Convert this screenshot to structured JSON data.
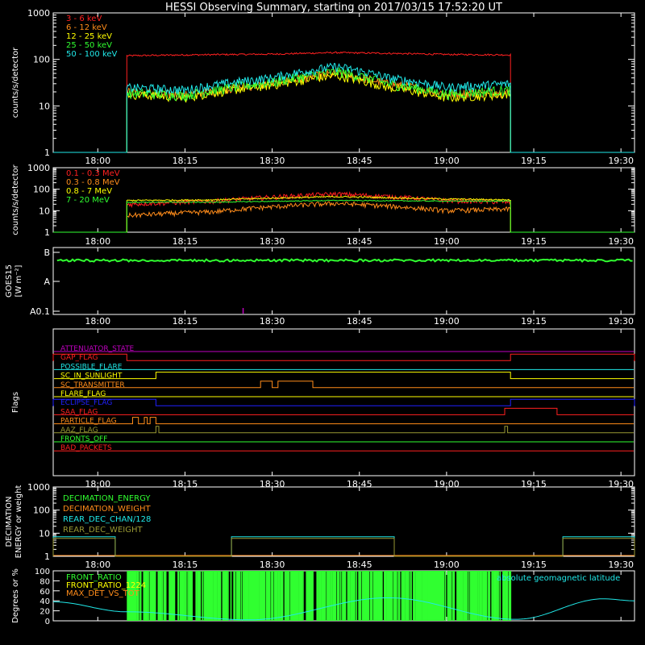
{
  "title": "HESSI Observing Summary, starting on 2017/03/15 17:52:20 UT",
  "time_ticks": [
    "18:00",
    "18:15",
    "18:30",
    "18:45",
    "19:00",
    "19:15",
    "19:30"
  ],
  "time_axis": {
    "start": "17:52:20",
    "end": "19:32:20"
  },
  "chart_data": [
    {
      "type": "line",
      "panel": "lightcurves",
      "ylabel": "counts/s/detector",
      "yscale": "log",
      "ylim": [
        1,
        1000
      ],
      "yticks": [
        "1",
        "10",
        "100",
        "1000"
      ],
      "data_interval": [
        "18:05",
        "19:11"
      ],
      "series": [
        {
          "name": "3 - 6 keV",
          "color": "#ff2020",
          "x": [
            "18:05",
            "18:15",
            "18:30",
            "18:41",
            "18:50",
            "19:00",
            "19:11"
          ],
          "values": [
            120,
            125,
            130,
            140,
            135,
            128,
            125
          ]
        },
        {
          "name": "6 - 12 keV",
          "color": "#ff8c1a",
          "x": [
            "18:05",
            "18:15",
            "18:30",
            "18:41",
            "18:50",
            "19:00",
            "19:11"
          ],
          "values": [
            20,
            17,
            30,
            50,
            30,
            18,
            20
          ]
        },
        {
          "name": "12 - 25 keV",
          "color": "#ffff00",
          "x": [
            "18:05",
            "18:15",
            "18:30",
            "18:41",
            "18:50",
            "19:00",
            "19:11"
          ],
          "values": [
            18,
            15,
            28,
            45,
            25,
            15,
            18
          ]
        },
        {
          "name": "25 - 50 keV",
          "color": "#30ff30",
          "x": [
            "18:05",
            "18:15",
            "18:30",
            "18:41",
            "18:50",
            "19:00",
            "19:11"
          ],
          "values": [
            19,
            17,
            32,
            55,
            30,
            18,
            22
          ]
        },
        {
          "name": "50 - 100 keV",
          "color": "#20e8e8",
          "x": [
            "18:05",
            "18:15",
            "18:30",
            "18:41",
            "18:50",
            "19:00",
            "19:11"
          ],
          "values": [
            25,
            22,
            40,
            70,
            40,
            25,
            30
          ]
        }
      ]
    },
    {
      "type": "line",
      "panel": "high-energy",
      "ylabel": "counts/s/detector",
      "yscale": "log",
      "ylim": [
        1,
        1000
      ],
      "yticks": [
        "1",
        "10",
        "100",
        "1000"
      ],
      "data_interval": [
        "18:05",
        "19:11"
      ],
      "series": [
        {
          "name": "0.1 - 0.3 MeV",
          "color": "#ff2020",
          "x": [
            "18:05",
            "18:20",
            "18:41",
            "19:00",
            "19:11"
          ],
          "values": [
            20,
            28,
            60,
            30,
            25
          ]
        },
        {
          "name": "0.3 - 0.8 MeV",
          "color": "#ff8c1a",
          "x": [
            "18:05",
            "18:20",
            "18:41",
            "19:00",
            "19:11"
          ],
          "values": [
            6,
            9,
            22,
            10,
            12
          ]
        },
        {
          "name": "0.8 - 7 MeV",
          "color": "#ffff00",
          "x": [
            "18:05",
            "18:20",
            "18:41",
            "19:00",
            "19:11"
          ],
          "values": [
            30,
            32,
            45,
            35,
            32
          ]
        },
        {
          "name": "7 - 20 MeV",
          "color": "#30ff30",
          "x": [
            "18:05",
            "18:20",
            "18:41",
            "19:00",
            "19:11"
          ],
          "values": [
            25,
            25,
            30,
            28,
            28
          ]
        }
      ]
    },
    {
      "type": "line",
      "panel": "goes",
      "ylabel": "GOES15",
      "ylabel2": "[W m⁻²]",
      "yticks": [
        "A0.1",
        "A",
        "B"
      ],
      "ylim_class": [
        "A0.1",
        "B"
      ],
      "series": [
        {
          "name": "goes-flux",
          "color": "#30ff30",
          "x": [
            "17:53",
            "19:32"
          ],
          "values": [
            "B0.7",
            "B0.7"
          ]
        }
      ],
      "marker": {
        "x": "18:25",
        "color": "#c000c0"
      }
    },
    {
      "type": "table",
      "panel": "flags",
      "ylabel": "Flags",
      "flags": [
        {
          "name": "ATTENUATOR_STATE",
          "color": "#c000c0",
          "high": []
        },
        {
          "name": "GAP_FLAG",
          "color": "#ff2020",
          "high": [
            [
              "17:52:20",
              "18:05"
            ],
            [
              "19:11",
              "19:32:20"
            ]
          ]
        },
        {
          "name": "POSSIBLE_FLARE",
          "color": "#20e8e8",
          "high": []
        },
        {
          "name": "SC_IN_SUNLIGHT",
          "color": "#ffff00",
          "high": [
            [
              "18:10",
              "19:11"
            ]
          ]
        },
        {
          "name": "SC_TRANSMITTER",
          "color": "#ff8c1a",
          "high": [
            [
              "18:28",
              "18:30"
            ],
            [
              "18:31",
              "18:37"
            ]
          ]
        },
        {
          "name": "FLARE_FLAG",
          "color": "#ffff00",
          "high": []
        },
        {
          "name": "ECLIPSE_FLAG",
          "color": "#2020ff",
          "high": [
            [
              "17:52:20",
              "18:10"
            ],
            [
              "19:11",
              "19:32:20"
            ]
          ]
        },
        {
          "name": "SAA_FLAG",
          "color": "#ff2020",
          "high": [
            [
              "19:10",
              "19:19"
            ]
          ]
        },
        {
          "name": "PARTICLE_FLAG",
          "color": "#ff8c1a",
          "high": [
            [
              "18:06",
              "18:07"
            ],
            [
              "18:08",
              "18:08:30"
            ],
            [
              "18:09",
              "18:10"
            ]
          ]
        },
        {
          "name": "AAZ_FLAG",
          "color": "#999933",
          "high": [
            [
              "18:10",
              "18:10:30"
            ],
            [
              "19:10",
              "19:10:30"
            ]
          ]
        },
        {
          "name": "FRONTS_OFF",
          "color": "#30ff30",
          "high": []
        },
        {
          "name": "BAD_PACKETS",
          "color": "#ff2020",
          "high": []
        }
      ]
    },
    {
      "type": "line",
      "panel": "decimation",
      "ylabel": "DECIMATION",
      "ylabel2": "ENERGY or weight",
      "yscale": "log",
      "ylim": [
        1,
        1000
      ],
      "yticks": [
        "1",
        "10",
        "100",
        "1000"
      ],
      "series": [
        {
          "name": "DECIMATION_ENERGY",
          "color": "#30ff30",
          "x": [
            "17:52:20",
            "19:32:20"
          ],
          "values": [
            1,
            1
          ]
        },
        {
          "name": "DECIMATION_WEIGHT",
          "color": "#ff8c1a",
          "x": [
            "17:52:20",
            "19:32:20"
          ],
          "values": [
            1,
            1
          ]
        },
        {
          "name": "REAR_DEC_CHAN/128",
          "color": "#20e8e8",
          "high": [
            [
              "17:52:20",
              "18:03"
            ],
            [
              "18:23",
              "18:51"
            ],
            [
              "19:20",
              "19:32:20"
            ]
          ],
          "high_value": 7,
          "low_value": 1
        },
        {
          "name": "REAR_DEC_WEIGHT",
          "color": "#999933",
          "high": [
            [
              "17:52:20",
              "18:03"
            ],
            [
              "18:23",
              "18:51"
            ],
            [
              "19:20",
              "19:32:20"
            ]
          ],
          "high_value": 6,
          "low_value": 1
        }
      ]
    },
    {
      "type": "line",
      "panel": "ratios",
      "ylabel": "Degrees or %",
      "ylim": [
        0,
        100
      ],
      "yticks": [
        "0",
        "20",
        "40",
        "60",
        "80",
        "100"
      ],
      "series": [
        {
          "name": "FRONT_RATIO",
          "color": "#30ff30",
          "x": [
            "18:05",
            "19:11"
          ],
          "values": [
            100,
            100
          ]
        },
        {
          "name": "FRONT_RATIO_1224",
          "color": "#ffff00",
          "x": [],
          "values": []
        },
        {
          "name": "MAX_DET_VS_TOT",
          "color": "#ff8c1a",
          "x": [],
          "values": []
        },
        {
          "name": "absolute geomagnetic latitude",
          "color": "#20e8e8",
          "x": [
            "17:52:20",
            "18:05",
            "18:26",
            "18:50",
            "19:12",
            "19:27",
            "19:32:20"
          ],
          "values": [
            38,
            18,
            2,
            46,
            3,
            44,
            40
          ]
        }
      ]
    }
  ]
}
